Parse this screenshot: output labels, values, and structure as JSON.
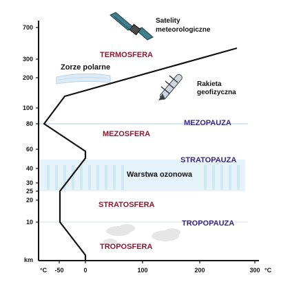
{
  "axes": {
    "y_unit": "km",
    "x_unit_left": "°C",
    "x_unit_right": "°C",
    "y_ticks": [
      "700",
      "300",
      "200",
      "100",
      "80",
      "60",
      "40",
      "30",
      "25",
      "20",
      "10"
    ],
    "x_ticks": [
      "-50",
      "0",
      "100",
      "200",
      "300"
    ]
  },
  "layers": {
    "termosfera": "TERMOSFERA",
    "mezosfera": "MEZOSFERA",
    "stratosfera": "STRATOSFERA",
    "troposfera": "TROPOSFERA"
  },
  "boundaries": {
    "mezopauza": "MEZOPAUZA",
    "stratopauza": "STRATOPAUZA",
    "tropopauza": "TROPOPAUZA"
  },
  "annotations": {
    "satellite_line1": "Satelity",
    "satellite_line2": "meteorologiczne",
    "aurora": "Zorze polarne",
    "rocket_line1": "Rakieta",
    "rocket_line2": "geofizyczna",
    "ozone": "Warstwa ozonowa"
  },
  "colors": {
    "layer_label": "#8a1a2e",
    "boundary_label": "#3a2585",
    "ozone_band": "#cfe6f3"
  },
  "icons": [
    "satellite-icon",
    "rocket-icon",
    "aurora-icon",
    "cloud-icon"
  ]
}
